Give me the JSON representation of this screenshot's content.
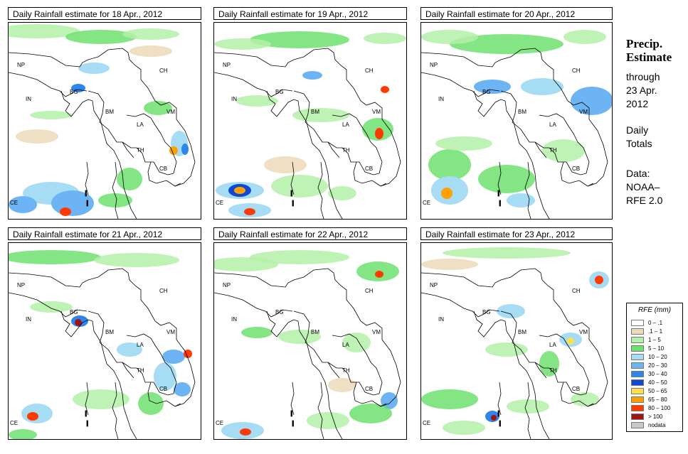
{
  "panels": [
    {
      "title": "Daily Rainfall estimate for  18 Apr., 2012"
    },
    {
      "title": "Daily Rainfall estimate for  19 Apr., 2012"
    },
    {
      "title": "Daily Rainfall estimate for  20 Apr., 2012"
    },
    {
      "title": "Daily Rainfall estimate for  21 Apr., 2012"
    },
    {
      "title": "Daily Rainfall estimate for  22 Apr., 2012"
    },
    {
      "title": "Daily Rainfall estimate for  23 Apr., 2012"
    }
  ],
  "country_labels": [
    "NP",
    "CH",
    "IN",
    "BG",
    "BM",
    "VM",
    "LA",
    "TH",
    "CB",
    "CE"
  ],
  "side": {
    "title_line1": "Precip.",
    "title_line2": "Estimate",
    "through": "through",
    "through_date_1": "23 Apr.",
    "through_date_2": "2012",
    "daily_1": "Daily",
    "daily_2": "Totals",
    "data_1": "Data:",
    "data_2": "NOAA–",
    "data_3": "RFE 2.0"
  },
  "legend": {
    "title": "RFE (mm)",
    "items": [
      {
        "label": "0 – .1",
        "color": "#ffffff"
      },
      {
        "label": ".1 – 1",
        "color": "#ecd9b8"
      },
      {
        "label": "1 – 5",
        "color": "#b4f0a8"
      },
      {
        "label": "5 – 10",
        "color": "#6ee06e"
      },
      {
        "label": "10 – 20",
        "color": "#a6dcf4"
      },
      {
        "label": "20 – 30",
        "color": "#6cb4f4"
      },
      {
        "label": "30 – 40",
        "color": "#2c86ee"
      },
      {
        "label": "40 – 50",
        "color": "#1048d6"
      },
      {
        "label": "50 – 65",
        "color": "#ffe24a"
      },
      {
        "label": "65 – 80",
        "color": "#ffa000"
      },
      {
        "label": "80 – 100",
        "color": "#ff3a00"
      },
      {
        "label": "> 100",
        "color": "#a01414"
      },
      {
        "label": "nodata",
        "color": "#c8c8c8"
      }
    ]
  }
}
